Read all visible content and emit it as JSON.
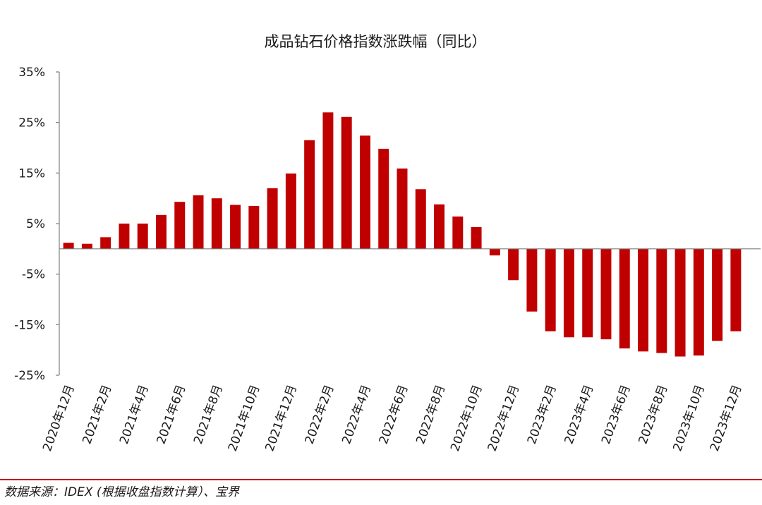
{
  "chart_data": {
    "type": "bar",
    "title": "成品钻石价格指数涨跌幅（同比）",
    "color": "#c00000",
    "ylim": [
      -25,
      35
    ],
    "yticks": [
      35,
      25,
      15,
      5,
      -5,
      -15,
      -25
    ],
    "ytick_labels": [
      "35%",
      "25%",
      "15%",
      "5%",
      "-5%",
      "-15%",
      "-25%"
    ],
    "xtick_labels": [
      "2020年12月",
      "2021年2月",
      "2021年4月",
      "2021年6月",
      "2021年8月",
      "2021年10月",
      "2021年12月",
      "2022年2月",
      "2022年4月",
      "2022年6月",
      "2022年8月",
      "2022年10月",
      "2022年12月",
      "2023年2月",
      "2023年4月",
      "2023年6月",
      "2023年8月",
      "2023年10月",
      "2023年12月"
    ],
    "categories": [
      "2020年12月",
      "2021年1月",
      "2021年2月",
      "2021年3月",
      "2021年4月",
      "2021年5月",
      "2021年6月",
      "2021年7月",
      "2021年8月",
      "2021年9月",
      "2021年10月",
      "2021年11月",
      "2021年12月",
      "2022年1月",
      "2022年2月",
      "2022年3月",
      "2022年4月",
      "2022年5月",
      "2022年6月",
      "2022年7月",
      "2022年8月",
      "2022年9月",
      "2022年10月",
      "2022年11月",
      "2022年12月",
      "2023年1月",
      "2023年2月",
      "2023年3月",
      "2023年4月",
      "2023年5月",
      "2023年6月",
      "2023年7月",
      "2023年8月",
      "2023年9月",
      "2023年10月",
      "2023年11月",
      "2023年12月"
    ],
    "values": [
      1.2,
      1.0,
      2.3,
      5.0,
      5.0,
      6.7,
      9.3,
      10.6,
      10.0,
      8.7,
      8.5,
      12.0,
      14.9,
      21.5,
      27.0,
      26.1,
      22.4,
      19.8,
      15.9,
      11.8,
      8.8,
      6.4,
      4.3,
      -1.3,
      -6.2,
      -12.4,
      -16.3,
      -17.5,
      -17.5,
      -17.9,
      -19.7,
      -20.3,
      -20.6,
      -21.3,
      -21.1,
      -18.2,
      -16.3
    ]
  },
  "source_note": "数据来源：IDEX (根据收盘指数计算）、宝界"
}
